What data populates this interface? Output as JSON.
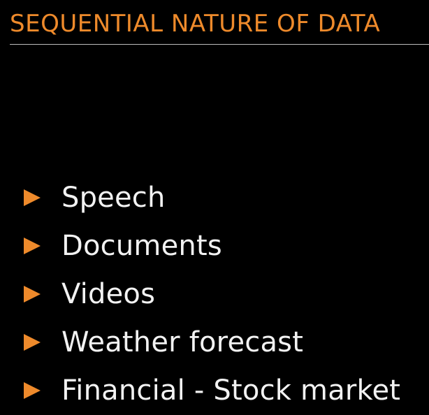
{
  "slide": {
    "title": "SEQUENTIAL NATURE OF DATA",
    "bullets": [
      {
        "text": "Speech",
        "icon": "triangle-right-icon"
      },
      {
        "text": "Documents",
        "icon": "triangle-right-icon"
      },
      {
        "text": "Videos",
        "icon": "triangle-right-icon"
      },
      {
        "text": "Weather forecast",
        "icon": "triangle-right-icon"
      },
      {
        "text": "Financial - Stock market",
        "icon": "triangle-right-icon"
      }
    ]
  },
  "colors": {
    "background": "#000000",
    "accent": "#ee8a2b",
    "text": "#f2f2f2",
    "rule": "#bdbdbd"
  }
}
